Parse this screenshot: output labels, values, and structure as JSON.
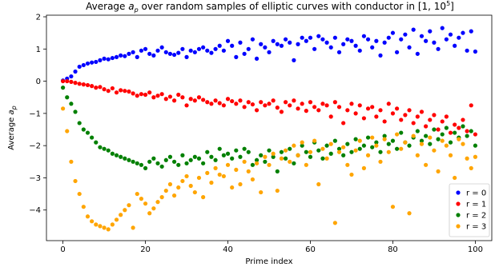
{
  "chart_data": {
    "type": "scatter",
    "title_prefix": "Average ",
    "title_sym": "a",
    "title_sub": "p",
    "title_mid": " over random samples of elliptic curves with conductor in [1, 10",
    "title_sup": "5",
    "title_end": "]",
    "xlabel": "Prime index",
    "ylabel_prefix": "Average ",
    "ylabel_sym": "a",
    "ylabel_sub": "p",
    "xlim": [
      -4,
      104
    ],
    "ylim": [
      -4.95,
      2.05
    ],
    "xticks": [
      0,
      20,
      40,
      60,
      80,
      100
    ],
    "yticks": [
      2,
      1,
      0,
      -1,
      -2,
      -3,
      -4
    ],
    "grid": false,
    "legend_position": "lower-right",
    "series": [
      {
        "name": "r = 0",
        "color": "#0000ff",
        "values": [
          0.02,
          0.08,
          0.15,
          0.3,
          0.45,
          0.5,
          0.55,
          0.58,
          0.6,
          0.65,
          0.7,
          0.68,
          0.72,
          0.75,
          0.8,
          0.78,
          0.85,
          0.9,
          0.75,
          0.95,
          1.0,
          0.85,
          0.8,
          0.95,
          1.05,
          0.9,
          0.85,
          0.82,
          0.88,
          1.0,
          0.75,
          0.95,
          0.9,
          1.0,
          1.05,
          0.95,
          0.88,
          1.0,
          1.1,
          0.95,
          1.25,
          1.1,
          0.75,
          1.2,
          0.85,
          1.0,
          1.3,
          0.7,
          1.15,
          1.05,
          0.9,
          1.25,
          1.15,
          1.1,
          1.3,
          1.2,
          0.65,
          1.15,
          1.35,
          1.25,
          1.35,
          1.0,
          1.4,
          1.3,
          1.2,
          1.05,
          1.35,
          0.9,
          1.15,
          1.3,
          1.25,
          1.1,
          0.95,
          1.4,
          1.3,
          1.05,
          1.25,
          0.8,
          1.2,
          1.35,
          1.5,
          0.9,
          1.3,
          1.45,
          1.05,
          1.6,
          0.85,
          1.4,
          1.25,
          1.55,
          1.2,
          1.0,
          1.65,
          1.3,
          1.45,
          1.1,
          1.35,
          1.5,
          0.95,
          1.55,
          0.92
        ]
      },
      {
        "name": "r = 1",
        "color": "#ff0000",
        "values": [
          0.0,
          0.0,
          -0.02,
          -0.05,
          -0.08,
          -0.1,
          -0.12,
          -0.15,
          -0.2,
          -0.18,
          -0.25,
          -0.3,
          -0.22,
          -0.35,
          -0.28,
          -0.3,
          -0.32,
          -0.38,
          -0.45,
          -0.4,
          -0.42,
          -0.35,
          -0.5,
          -0.45,
          -0.4,
          -0.55,
          -0.48,
          -0.6,
          -0.42,
          -0.5,
          -0.75,
          -0.55,
          -0.6,
          -0.5,
          -0.58,
          -0.65,
          -0.7,
          -0.6,
          -0.68,
          -0.75,
          -0.55,
          -0.62,
          -0.7,
          -0.6,
          -0.8,
          -0.65,
          -0.72,
          -0.9,
          -0.65,
          -0.75,
          -0.7,
          -0.6,
          -0.82,
          -0.95,
          -0.65,
          -0.75,
          -0.6,
          -0.85,
          -0.7,
          -0.92,
          -0.65,
          -0.8,
          -0.9,
          -0.7,
          -0.75,
          -1.1,
          -0.65,
          -0.8,
          -1.3,
          -0.9,
          -0.7,
          -1.0,
          -0.75,
          -1.15,
          -0.85,
          -0.8,
          -1.1,
          -0.9,
          -1.25,
          -0.7,
          -1.0,
          -0.85,
          -1.2,
          -1.05,
          -0.9,
          -1.3,
          -1.1,
          -0.95,
          -1.4,
          -1.2,
          -1.05,
          -1.5,
          -1.25,
          -1.1,
          -1.6,
          -1.35,
          -1.45,
          -1.2,
          -1.55,
          -0.75,
          -1.65
        ]
      },
      {
        "name": "r = 2",
        "color": "#008000",
        "values": [
          -0.2,
          -0.5,
          -0.7,
          -0.95,
          -1.3,
          -1.5,
          -1.6,
          -1.75,
          -1.9,
          -2.05,
          -2.1,
          -2.15,
          -2.25,
          -2.3,
          -2.35,
          -2.4,
          -2.45,
          -2.5,
          -2.55,
          -2.6,
          -2.7,
          -2.5,
          -2.4,
          -2.55,
          -2.65,
          -2.45,
          -2.35,
          -2.5,
          -2.6,
          -2.3,
          -2.55,
          -2.45,
          -2.35,
          -2.4,
          -2.55,
          -2.2,
          -2.35,
          -2.45,
          -2.1,
          -2.3,
          -2.25,
          -2.4,
          -2.15,
          -2.35,
          -2.1,
          -2.2,
          -2.6,
          -2.45,
          -2.3,
          -2.5,
          -2.15,
          -2.35,
          -2.8,
          -2.2,
          -2.4,
          -2.1,
          -2.55,
          -2.3,
          -2.0,
          -2.2,
          -2.35,
          -1.9,
          -2.15,
          -2.4,
          -2.0,
          -2.25,
          -1.85,
          -2.1,
          -2.3,
          -1.95,
          -2.2,
          -1.8,
          -2.1,
          -2.0,
          -1.75,
          -2.05,
          -1.9,
          -2.2,
          -1.7,
          -1.95,
          -1.85,
          -2.1,
          -1.6,
          -1.9,
          -2.0,
          -1.75,
          -1.55,
          -1.85,
          -1.7,
          -1.95,
          -1.5,
          -1.8,
          -1.65,
          -1.45,
          -1.9,
          -1.6,
          -1.75,
          -1.4,
          -1.7,
          -1.55,
          -2.0
        ]
      },
      {
        "name": "r = 3",
        "color": "#ffa500",
        "values": [
          -0.85,
          -1.55,
          -2.5,
          -3.1,
          -3.5,
          -3.9,
          -4.2,
          -4.35,
          -4.45,
          -4.5,
          -4.55,
          -4.6,
          -4.45,
          -4.3,
          -4.15,
          -4.0,
          -3.85,
          -4.55,
          -3.5,
          -3.65,
          -3.8,
          -4.1,
          -3.95,
          -3.75,
          -3.6,
          -3.4,
          -3.2,
          -3.55,
          -3.3,
          -3.1,
          -2.95,
          -3.25,
          -3.45,
          -3.0,
          -3.6,
          -2.85,
          -3.15,
          -2.7,
          -2.9,
          -2.95,
          -2.6,
          -3.3,
          -2.75,
          -3.2,
          -2.5,
          -2.8,
          -3.05,
          -2.55,
          -3.45,
          -2.35,
          -2.6,
          -2.25,
          -3.4,
          -2.4,
          -2.15,
          -2.5,
          -2.0,
          -2.3,
          -1.9,
          -2.6,
          -2.2,
          -1.85,
          -3.2,
          -2.1,
          -2.4,
          -1.95,
          -4.4,
          -2.2,
          -2.05,
          -2.6,
          -2.9,
          -2.15,
          -1.85,
          -2.7,
          -2.3,
          -1.75,
          -2.0,
          -2.5,
          -1.8,
          -2.2,
          -3.9,
          -1.65,
          -2.1,
          -1.9,
          -4.1,
          -1.7,
          -2.3,
          -1.95,
          -2.6,
          -1.75,
          -2.15,
          -2.8,
          -1.85,
          -2.0,
          -2.3,
          -3.0,
          -1.8,
          -1.95,
          -2.4,
          -2.7,
          -2.35
        ]
      }
    ]
  }
}
